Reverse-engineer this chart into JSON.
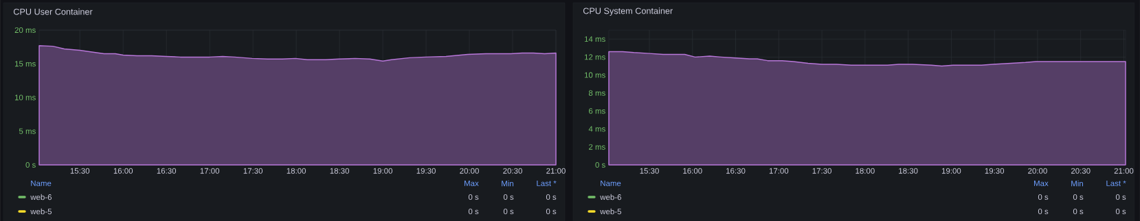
{
  "chart_data": [
    {
      "type": "area",
      "title": "CPU User Container",
      "xlim": [
        15.03,
        21.0
      ],
      "ylim": [
        0,
        20
      ],
      "xticks": [
        {
          "value": 15.5,
          "label": "15:30"
        },
        {
          "value": 16,
          "label": "16:00"
        },
        {
          "value": 16.5,
          "label": "16:30"
        },
        {
          "value": 17,
          "label": "17:00"
        },
        {
          "value": 17.5,
          "label": "17:30"
        },
        {
          "value": 18,
          "label": "18:00"
        },
        {
          "value": 18.5,
          "label": "18:30"
        },
        {
          "value": 19,
          "label": "19:00"
        },
        {
          "value": 19.5,
          "label": "19:30"
        },
        {
          "value": 20,
          "label": "20:00"
        },
        {
          "value": 20.5,
          "label": "20:30"
        },
        {
          "value": 21,
          "label": "21:00"
        }
      ],
      "yticks": [
        {
          "value": 0,
          "label": "0 s"
        },
        {
          "value": 5,
          "label": "5 ms"
        },
        {
          "value": 10,
          "label": "10 ms"
        },
        {
          "value": 15,
          "label": "15 ms"
        },
        {
          "value": 20,
          "label": "20 ms"
        }
      ],
      "grid": true,
      "legend": "bottom",
      "marker": "none",
      "series": [
        {
          "color": "#b877d9",
          "x": [
            15.03,
            15.19,
            15.32,
            15.5,
            15.61,
            15.78,
            15.91,
            16.0,
            16.16,
            16.33,
            16.5,
            16.66,
            16.83,
            17.0,
            17.15,
            17.29,
            17.49,
            17.67,
            17.84,
            17.99,
            18.13,
            18.34,
            18.49,
            18.68,
            18.85,
            19.0,
            19.1,
            19.31,
            19.49,
            19.73,
            19.98,
            20.19,
            20.48,
            20.61,
            20.74,
            20.87,
            21.0
          ],
          "values": [
            17.7,
            17.6,
            17.2,
            17.0,
            16.8,
            16.5,
            16.5,
            16.3,
            16.2,
            16.2,
            16.1,
            16.0,
            16.0,
            16.0,
            16.1,
            16.0,
            15.8,
            15.7,
            15.7,
            15.8,
            15.6,
            15.6,
            15.7,
            15.8,
            15.7,
            15.4,
            15.6,
            15.9,
            16.0,
            16.1,
            16.4,
            16.5,
            16.5,
            16.6,
            16.6,
            16.5,
            16.6
          ]
        },
        {
          "name": "web-6",
          "type": "line",
          "color": "#73bf69",
          "values": [
            null
          ]
        },
        {
          "name": "web-5",
          "type": "line",
          "color": "#fade2a",
          "values": [
            null
          ]
        }
      ],
      "annotations": [
        "Name",
        "Max",
        "Min",
        "Last *",
        "0 s",
        "0 s",
        "0 s",
        "0 s",
        "0 s",
        "0 s"
      ]
    },
    {
      "type": "area",
      "title": "CPU System Container",
      "xlim": [
        15.03,
        21.02
      ],
      "ylim": [
        0,
        15
      ],
      "xticks": [
        {
          "value": 15.5,
          "label": "15:30"
        },
        {
          "value": 16,
          "label": "16:00"
        },
        {
          "value": 16.5,
          "label": "16:30"
        },
        {
          "value": 17,
          "label": "17:00"
        },
        {
          "value": 17.5,
          "label": "17:30"
        },
        {
          "value": 18,
          "label": "18:00"
        },
        {
          "value": 18.5,
          "label": "18:30"
        },
        {
          "value": 19,
          "label": "19:00"
        },
        {
          "value": 19.5,
          "label": "19:30"
        },
        {
          "value": 20,
          "label": "20:00"
        },
        {
          "value": 20.5,
          "label": "20:30"
        },
        {
          "value": 21,
          "label": "21:00"
        }
      ],
      "yticks": [
        {
          "value": 0,
          "label": "0 s"
        },
        {
          "value": 2,
          "label": "2 ms"
        },
        {
          "value": 4,
          "label": "4 ms"
        },
        {
          "value": 6,
          "label": "6 ms"
        },
        {
          "value": 8,
          "label": "8 ms"
        },
        {
          "value": 10,
          "label": "10 ms"
        },
        {
          "value": 12,
          "label": "12 ms"
        },
        {
          "value": 14,
          "label": "14 ms"
        }
      ],
      "grid": true,
      "legend": "bottom",
      "marker": "none",
      "series": [
        {
          "color": "#b877d9",
          "x": [
            15.03,
            15.19,
            15.32,
            15.5,
            15.66,
            15.82,
            15.91,
            16.03,
            16.2,
            16.33,
            16.5,
            16.66,
            16.75,
            16.87,
            17.04,
            17.17,
            17.34,
            17.5,
            17.67,
            17.84,
            18.01,
            18.13,
            18.26,
            18.39,
            18.55,
            18.77,
            18.89,
            19.02,
            19.18,
            19.35,
            19.48,
            19.69,
            19.86,
            19.98,
            20.24,
            20.53,
            20.7,
            20.87,
            21.02
          ],
          "values": [
            12.6,
            12.6,
            12.5,
            12.4,
            12.3,
            12.3,
            12.3,
            12.0,
            12.1,
            12.0,
            11.9,
            11.8,
            11.8,
            11.6,
            11.6,
            11.5,
            11.3,
            11.2,
            11.2,
            11.1,
            11.1,
            11.1,
            11.1,
            11.2,
            11.2,
            11.1,
            11.0,
            11.1,
            11.1,
            11.1,
            11.2,
            11.3,
            11.4,
            11.5,
            11.5,
            11.5,
            11.5,
            11.5,
            11.5
          ]
        },
        {
          "name": "web-6",
          "type": "line",
          "color": "#73bf69",
          "values": [
            null
          ]
        },
        {
          "name": "web-5",
          "type": "line",
          "color": "#fade2a",
          "values": [
            null
          ]
        }
      ],
      "annotations": [
        "Name",
        "Max",
        "Min",
        "Last *",
        "0 s",
        "0 s",
        "0 s",
        "0 s",
        "0 s",
        "0 s"
      ]
    }
  ]
}
